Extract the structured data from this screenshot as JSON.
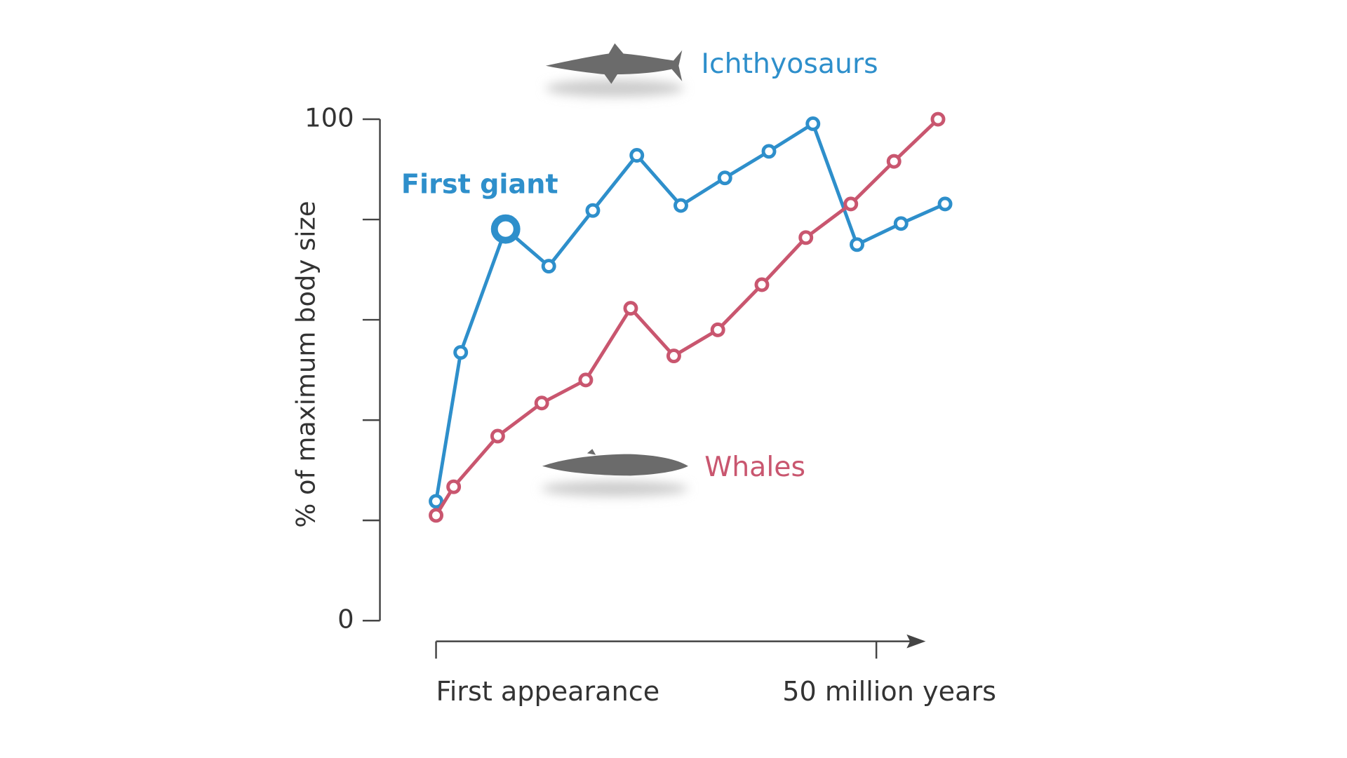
{
  "chart_data": {
    "type": "line",
    "ylabel": "% of maximum body size",
    "annotation": "First giant",
    "ylim": [
      0,
      100
    ],
    "yticks": [
      0,
      100
    ],
    "yminor_ticks": [
      20,
      40,
      60,
      80
    ],
    "xlim": [
      0,
      55.4
    ],
    "xticks": [
      {
        "value": 0,
        "label": "First appearance"
      },
      {
        "value": 50,
        "label": "50 million years"
      }
    ],
    "series": [
      {
        "name": "Ichthyosaurs",
        "color": "#2e8fcb",
        "x": [
          0,
          2.8,
          7.9,
          12.8,
          17.8,
          22.8,
          27.8,
          32.8,
          37.8,
          42.8,
          47.8,
          52.8,
          57.8
        ],
        "values": [
          23.8,
          53.5,
          78.1,
          70.7,
          81.8,
          92.8,
          82.8,
          88.3,
          93.6,
          99.1,
          75,
          79.2,
          83.1
        ]
      },
      {
        "name": "Whales",
        "color": "#c9566f",
        "x": [
          0,
          2,
          7,
          12,
          17,
          22.1,
          27,
          32,
          37,
          42,
          47.1,
          52,
          57
        ],
        "values": [
          21,
          26.7,
          36.8,
          43.4,
          48,
          62.3,
          52.8,
          58,
          67,
          76.4,
          83.1,
          91.6,
          100
        ]
      }
    ]
  }
}
